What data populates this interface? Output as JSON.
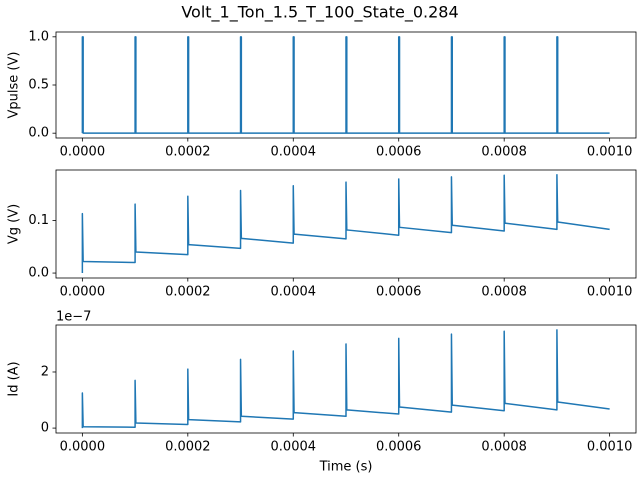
{
  "title": "Volt_1_Ton_1.5_T_100_State_0.284",
  "chart_data": [
    {
      "type": "line",
      "ylabel": "Vpulse (V)",
      "color": "#1f77b4",
      "x": [
        0,
        0,
        1.5e-06,
        1.5e-06,
        0.0001,
        0.0001,
        0.0001015,
        0.0001015,
        0.0002,
        0.0002,
        0.0002015,
        0.0002015,
        0.0003,
        0.0003,
        0.0003015,
        0.0003015,
        0.0004,
        0.0004,
        0.0004015,
        0.0004015,
        0.0005,
        0.0005,
        0.0005015,
        0.0005015,
        0.0006,
        0.0006,
        0.0006015,
        0.0006015,
        0.0007,
        0.0007,
        0.0007015,
        0.0007015,
        0.0008,
        0.0008,
        0.0008015,
        0.0008015,
        0.0009,
        0.0009,
        0.0009015,
        0.0009015,
        0.001
      ],
      "values": [
        0,
        1,
        1,
        0,
        0,
        1,
        1,
        0,
        0,
        1,
        1,
        0,
        0,
        1,
        1,
        0,
        0,
        1,
        1,
        0,
        0,
        1,
        1,
        0,
        0,
        1,
        1,
        0,
        0,
        1,
        1,
        0,
        0,
        1,
        1,
        0,
        0,
        1,
        1,
        0,
        0
      ],
      "xlim": [
        -5e-05,
        0.00105
      ],
      "xticks": [
        {
          "value": 0,
          "label": "0.0000"
        },
        {
          "value": 0.0002,
          "label": "0.0002"
        },
        {
          "value": 0.0004,
          "label": "0.0004"
        },
        {
          "value": 0.0006,
          "label": "0.0006"
        },
        {
          "value": 0.0008,
          "label": "0.0008"
        },
        {
          "value": 0.001,
          "label": "0.0010"
        }
      ],
      "ylim": [
        -0.05,
        1.05
      ],
      "yticks": [
        {
          "value": 0,
          "label": "0.0"
        },
        {
          "value": 0.5,
          "label": "0.5"
        },
        {
          "value": 1,
          "label": "1.0"
        }
      ]
    },
    {
      "type": "line",
      "ylabel": "Vg (V)",
      "color": "#1f77b4",
      "x": [
        0,
        0,
        1.5e-06,
        0.0001,
        0.0001,
        0.0001015,
        0.0002,
        0.0002,
        0.0002015,
        0.0003,
        0.0003,
        0.0003015,
        0.0004,
        0.0004,
        0.0004015,
        0.0005,
        0.0005,
        0.0005015,
        0.0006,
        0.0006,
        0.0006015,
        0.0007,
        0.0007,
        0.0007015,
        0.0008,
        0.0008,
        0.0008015,
        0.0009,
        0.0009,
        0.0009015,
        0.001
      ],
      "values": [
        0,
        0.113,
        0.022,
        0.02,
        0.131,
        0.04,
        0.035,
        0.146,
        0.054,
        0.047,
        0.157,
        0.066,
        0.057,
        0.166,
        0.074,
        0.065,
        0.173,
        0.082,
        0.072,
        0.179,
        0.087,
        0.077,
        0.183,
        0.091,
        0.08,
        0.186,
        0.095,
        0.083,
        0.187,
        0.097,
        0.083
      ],
      "xlim": [
        -5e-05,
        0.00105
      ],
      "xticks": [
        {
          "value": 0,
          "label": "0.0000"
        },
        {
          "value": 0.0002,
          "label": "0.0002"
        },
        {
          "value": 0.0004,
          "label": "0.0004"
        },
        {
          "value": 0.0006,
          "label": "0.0006"
        },
        {
          "value": 0.0008,
          "label": "0.0008"
        },
        {
          "value": 0.001,
          "label": "0.0010"
        }
      ],
      "ylim": [
        -0.0094,
        0.196
      ],
      "yticks": [
        {
          "value": 0,
          "label": "0.0"
        },
        {
          "value": 0.1,
          "label": "0.1"
        }
      ]
    },
    {
      "type": "line",
      "ylabel": "Id (A)",
      "xlabel": "Time (s)",
      "offset_label": "1e−7",
      "color": "#1f77b4",
      "x": [
        0,
        0,
        1.5e-06,
        0.0001,
        0.0001,
        0.0001015,
        0.0002,
        0.0002,
        0.0002015,
        0.0003,
        0.0003,
        0.0003015,
        0.0004,
        0.0004,
        0.0004015,
        0.0005,
        0.0005,
        0.0005015,
        0.0006,
        0.0006,
        0.0006015,
        0.0007,
        0.0007,
        0.0007015,
        0.0008,
        0.0008,
        0.0008015,
        0.0009,
        0.0009,
        0.0009015,
        0.001
      ],
      "values": [
        0,
        1.25e-07,
        5e-09,
        3e-09,
        1.7e-07,
        1.8e-08,
        1.3e-08,
        2.1e-07,
        3e-08,
        2.2e-08,
        2.45e-07,
        4.2e-08,
        3.2e-08,
        2.75e-07,
        5.5e-08,
        4.2e-08,
        3e-07,
        6.5e-08,
        5e-08,
        3.2e-07,
        7.5e-08,
        5.7e-08,
        3.35e-07,
        8.2e-08,
        6.2e-08,
        3.45e-07,
        8.8e-08,
        6.5e-08,
        3.5e-07,
        9.3e-08,
        6.8e-08
      ],
      "xlim": [
        -5e-05,
        0.00105
      ],
      "xticks": [
        {
          "value": 0,
          "label": "0.0000"
        },
        {
          "value": 0.0002,
          "label": "0.0002"
        },
        {
          "value": 0.0004,
          "label": "0.0004"
        },
        {
          "value": 0.0006,
          "label": "0.0006"
        },
        {
          "value": 0.0008,
          "label": "0.0008"
        },
        {
          "value": 0.001,
          "label": "0.0010"
        }
      ],
      "ylim": [
        -1.75e-08,
        3.675e-07
      ],
      "yticks": [
        0,
        {
          "value": 2e-07,
          "label": "2"
        }
      ]
    }
  ]
}
